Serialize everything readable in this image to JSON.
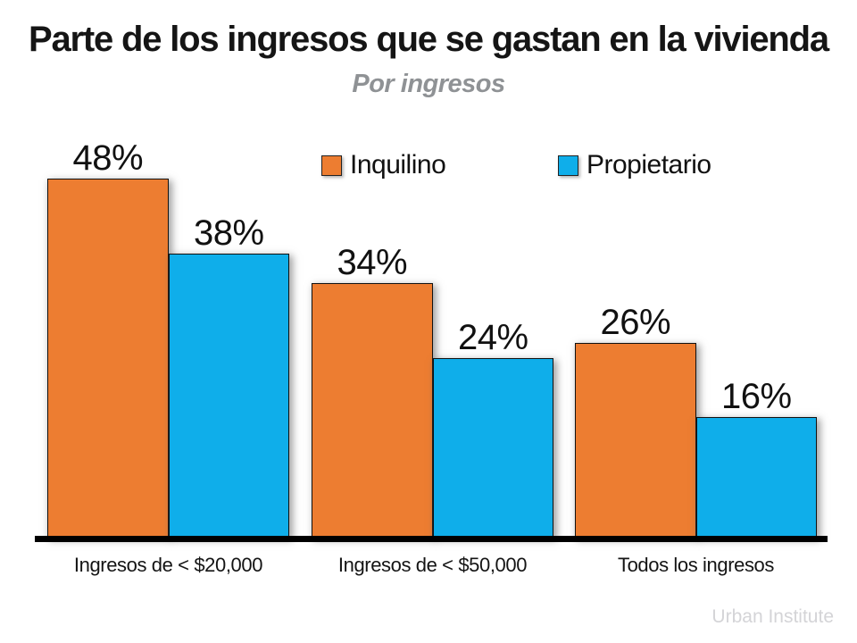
{
  "title": "Parte de los ingresos que se gastan en la vivienda",
  "subtitle": "Por ingresos",
  "footer": {
    "credit": "Urban Institute"
  },
  "colors": {
    "renter_orange": "#ED7D31",
    "owner_blue": "#0FAEEA",
    "bar_border": "#111111",
    "axis": "#000000",
    "title_text": "#151515",
    "subtitle_gray": "#8F9295",
    "credit_gray": "#D4D4D7"
  },
  "legend": [
    {
      "label": "Inquilino"
    },
    {
      "label": "Propietario"
    }
  ],
  "chart_data": {
    "type": "bar",
    "title": "Parte de los ingresos que se gastan en la vivienda",
    "subtitle": "Por ingresos",
    "categories": [
      "Ingresos de < $20,000",
      "Ingresos de < $50,000",
      "Todos los ingresos"
    ],
    "series": [
      {
        "name": "Inquilino",
        "color": "#ED7D31",
        "values": [
          48,
          34,
          26
        ]
      },
      {
        "name": "Propietario",
        "color": "#0FAEEA",
        "values": [
          38,
          24,
          16
        ]
      }
    ],
    "value_label_unit": "%",
    "value_labels": [
      [
        "48%",
        "34%",
        "26%"
      ],
      [
        "38%",
        "24%",
        "16%"
      ]
    ],
    "xlabel": "",
    "ylabel": "",
    "ylim": [
      0,
      50
    ],
    "grid": false,
    "y_axis_shown": false,
    "legend_position": "top-center",
    "source": "Urban Institute"
  }
}
